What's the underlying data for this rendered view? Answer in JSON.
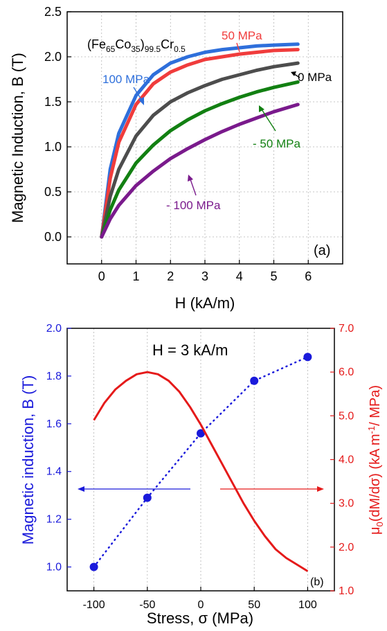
{
  "chart_data": [
    {
      "type": "line",
      "panel_label": "(a)",
      "title_parts": {
        "base1": "(Fe",
        "sub1": "65",
        "mid": "Co",
        "sub2": "35",
        "paren": ")",
        "sub3": "99.5",
        "cr": "Cr",
        "sub4": "0.5"
      },
      "xlabel": "H (kA/m)",
      "ylabel": "Magnetic Induction, B (T)",
      "xlim": [
        -1,
        7
      ],
      "ylim": [
        -0.3,
        2.5
      ],
      "xticks": [
        0,
        1,
        2,
        3,
        4,
        5,
        6
      ],
      "yticks": [
        0.0,
        0.5,
        1.0,
        1.5,
        2.0,
        2.5
      ],
      "ytick_labels": [
        "0.0",
        "0.5",
        "1.0",
        "1.5",
        "2.0",
        "2.5"
      ],
      "grid": true,
      "series": [
        {
          "name": "100 MPa",
          "color": "#2e6fdb",
          "x": [
            0,
            0.25,
            0.5,
            1,
            1.5,
            2,
            2.5,
            3,
            3.5,
            4,
            4.5,
            5,
            5.7
          ],
          "y": [
            0,
            0.75,
            1.15,
            1.57,
            1.8,
            1.93,
            2.0,
            2.05,
            2.08,
            2.1,
            2.12,
            2.13,
            2.14
          ]
        },
        {
          "name": "50 MPa",
          "color": "#f03c3c",
          "x": [
            0,
            0.25,
            0.5,
            1,
            1.5,
            2,
            2.5,
            3,
            3.5,
            4,
            4.5,
            5,
            5.7
          ],
          "y": [
            0,
            0.65,
            1.05,
            1.47,
            1.7,
            1.83,
            1.91,
            1.97,
            2.0,
            2.03,
            2.05,
            2.07,
            2.08
          ]
        },
        {
          "name": "0 MPa",
          "color": "#4d4d4d",
          "x": [
            0,
            0.25,
            0.5,
            1,
            1.5,
            2,
            2.5,
            3,
            3.5,
            4,
            4.5,
            5,
            5.7
          ],
          "y": [
            0,
            0.45,
            0.75,
            1.12,
            1.35,
            1.5,
            1.6,
            1.68,
            1.75,
            1.8,
            1.85,
            1.89,
            1.93
          ]
        },
        {
          "name": "- 50 MPa",
          "color": "#128012",
          "x": [
            0,
            0.25,
            0.5,
            1,
            1.5,
            2,
            2.5,
            3,
            3.5,
            4,
            4.5,
            5,
            5.7
          ],
          "y": [
            0,
            0.3,
            0.52,
            0.82,
            1.02,
            1.18,
            1.3,
            1.4,
            1.48,
            1.55,
            1.61,
            1.66,
            1.72
          ]
        },
        {
          "name": "- 100 MPa",
          "color": "#7a1a8c",
          "x": [
            0,
            0.25,
            0.5,
            1,
            1.5,
            2,
            2.5,
            3,
            3.5,
            4,
            4.5,
            5,
            5.7
          ],
          "y": [
            0,
            0.2,
            0.35,
            0.57,
            0.73,
            0.87,
            0.98,
            1.08,
            1.17,
            1.25,
            1.32,
            1.39,
            1.47
          ]
        }
      ]
    },
    {
      "type": "scatter",
      "panel_label": "(b)",
      "title": "H = 3 kA/m",
      "xlabel": "Stress, σ (MPa)",
      "ylabel_left": "Magnetic induction, B (T)",
      "ylabel_right_parts": {
        "mu": "μ",
        "sub": "0",
        "rest1": "(dM/dσ) (kA m",
        "sup": "-1",
        "rest2": "/ MPa)"
      },
      "xlim": [
        -125,
        125
      ],
      "ylim_left": [
        0.9,
        2.0
      ],
      "ylim_right": [
        1.0,
        7.0
      ],
      "xticks": [
        -100,
        -50,
        0,
        50,
        100
      ],
      "yticks_left": [
        1.0,
        1.2,
        1.4,
        1.6,
        1.8,
        2.0
      ],
      "yticks_left_labels": [
        "1.0",
        "1.2",
        "1.4",
        "1.6",
        "1.8",
        "2.0"
      ],
      "yticks_right": [
        1.0,
        2.0,
        3.0,
        4.0,
        5.0,
        6.0,
        7.0
      ],
      "yticks_right_labels": [
        "1.0",
        "2.0",
        "3.0",
        "4.0",
        "5.0",
        "6.0",
        "7.0"
      ],
      "grid": true,
      "left_color": "#1a1adb",
      "right_color": "#e51a1a",
      "series": [
        {
          "axis": "left",
          "kind": "points+dotted",
          "color": "#1a1adb",
          "x": [
            -100,
            -50,
            0,
            50,
            100
          ],
          "y": [
            1.0,
            1.29,
            1.56,
            1.78,
            1.88
          ]
        },
        {
          "axis": "right",
          "kind": "line",
          "color": "#e51a1a",
          "x": [
            -100,
            -90,
            -80,
            -70,
            -60,
            -50,
            -40,
            -30,
            -20,
            -10,
            0,
            10,
            20,
            30,
            40,
            50,
            60,
            70,
            80,
            90,
            100
          ],
          "y": [
            4.9,
            5.3,
            5.6,
            5.8,
            5.95,
            6.0,
            5.95,
            5.8,
            5.55,
            5.2,
            4.8,
            4.35,
            3.9,
            3.45,
            3.0,
            2.6,
            2.25,
            1.95,
            1.75,
            1.6,
            1.45
          ]
        }
      ]
    }
  ]
}
